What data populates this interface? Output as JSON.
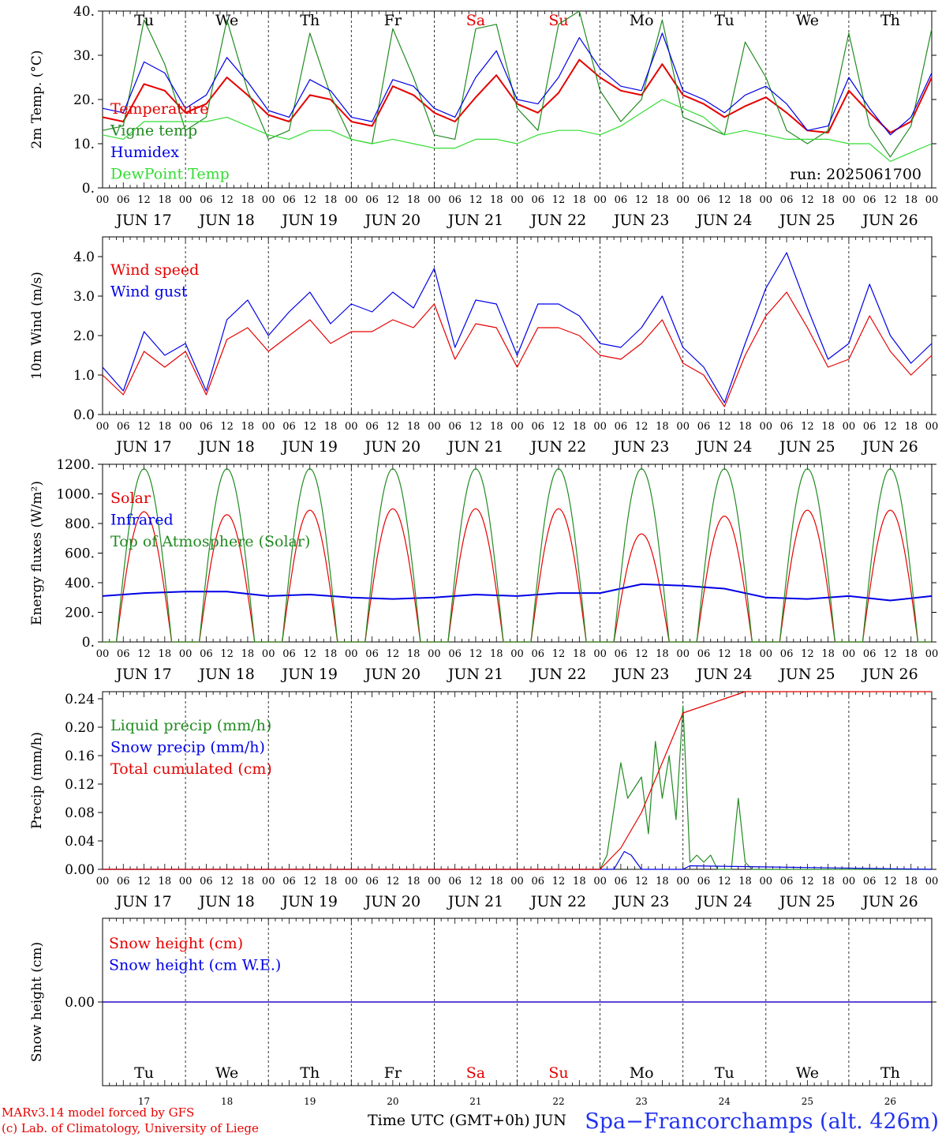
{
  "meter": {
    "footer_left_1": "MARv3.14 model forced by GFS",
    "footer_left_2": "(c) Lab. of Climatology, University of Liege",
    "footer_center": "Time UTC (GMT+0h) JUN",
    "footer_right": "Spa−Francorchamps (alt. 426m)",
    "run_label": "run: 2025061700"
  },
  "colors": {
    "red": "#e60000",
    "green": "#228b22",
    "blue": "#0000e6",
    "lightgreen": "#33dd33",
    "weekend": "#e60000",
    "text": "#000000",
    "footer_right": "#2233ee"
  },
  "chart_data": {
    "days": [
      "JUN 17",
      "JUN 18",
      "JUN 19",
      "JUN 20",
      "JUN 21",
      "JUN 22",
      "JUN 23",
      "JUN 24",
      "JUN 25",
      "JUN 26"
    ],
    "day_numbers": [
      "17",
      "18",
      "19",
      "20",
      "21",
      "22",
      "23",
      "24",
      "25",
      "26"
    ],
    "weekdays": [
      "Tu",
      "We",
      "Th",
      "Fr",
      "Sa",
      "Su",
      "Mo",
      "Tu",
      "We",
      "Th"
    ],
    "weekend_flags": [
      false,
      false,
      false,
      false,
      true,
      true,
      false,
      false,
      false,
      false
    ],
    "hour_ticks": [
      "00",
      "06",
      "12",
      "18"
    ],
    "panels": [
      {
        "id": "temperature",
        "type": "line",
        "ylabel": "2m Temp. (°C)",
        "ylim": [
          0,
          40
        ],
        "yticks": [
          "0.",
          "10.",
          "20.",
          "30.",
          "40."
        ],
        "yticks_values": [
          0,
          10,
          20,
          30,
          40
        ],
        "series": [
          {
            "name": "Temperature",
            "color": "red",
            "x": [
              0,
              6,
              12,
              18,
              24,
              30,
              36,
              42,
              48,
              54,
              60,
              66,
              72,
              78,
              84,
              90,
              96,
              102,
              108,
              114,
              120,
              126,
              132,
              138,
              144,
              150,
              156,
              162,
              168,
              174,
              180,
              186,
              192,
              198,
              204,
              210,
              216,
              222,
              228,
              234,
              240
            ],
            "values": [
              16,
              15,
              23.5,
              22,
              17,
              19,
              25,
              21,
              16.5,
              15,
              21,
              20,
              15,
              14,
              23,
              21,
              17,
              15,
              20.5,
              25.5,
              19,
              17,
              21.5,
              29,
              25,
              22,
              21,
              28,
              21,
              19,
              16,
              18.5,
              20.5,
              17,
              13,
              12.5,
              22,
              17,
              12.5,
              15,
              25
            ]
          },
          {
            "name": "Vigne temp",
            "color": "green",
            "x": [
              0,
              6,
              12,
              18,
              24,
              30,
              36,
              42,
              48,
              54,
              60,
              66,
              72,
              78,
              84,
              90,
              96,
              102,
              108,
              114,
              120,
              126,
              132,
              138,
              144,
              150,
              156,
              162,
              168,
              174,
              180,
              186,
              192,
              198,
              204,
              210,
              216,
              222,
              228,
              234,
              240
            ],
            "values": [
              13,
              14,
              38,
              28,
              13,
              16,
              38,
              22,
              11,
              13,
              35,
              21,
              11,
              10,
              36,
              25,
              12,
              11,
              36,
              37,
              18,
              13,
              37,
              40,
              22,
              15,
              20,
              38,
              16,
              14,
              12,
              33,
              25,
              13,
              10,
              13,
              35,
              14,
              7,
              14,
              36
            ]
          },
          {
            "name": "Humidex",
            "color": "blue",
            "x": [
              0,
              6,
              12,
              18,
              24,
              30,
              36,
              42,
              48,
              54,
              60,
              66,
              72,
              78,
              84,
              90,
              96,
              102,
              108,
              114,
              120,
              126,
              132,
              138,
              144,
              150,
              156,
              162,
              168,
              174,
              180,
              186,
              192,
              198,
              204,
              210,
              216,
              222,
              228,
              234,
              240
            ],
            "values": [
              18,
              17,
              28.5,
              26,
              18,
              21,
              29.5,
              24,
              17.5,
              16,
              24.5,
              22,
              16,
              15,
              24.5,
              23,
              18,
              16,
              25,
              31,
              20,
              19,
              25,
              34,
              27,
              23,
              22,
              35,
              22,
              20,
              17,
              21,
              23,
              19,
              13,
              14,
              25,
              18,
              12,
              16,
              26
            ]
          },
          {
            "name": "DewPoint Temp",
            "color": "lightgreen",
            "x": [
              0,
              6,
              12,
              18,
              24,
              30,
              36,
              42,
              48,
              54,
              60,
              66,
              72,
              78,
              84,
              90,
              96,
              102,
              108,
              114,
              120,
              126,
              132,
              138,
              144,
              150,
              156,
              162,
              168,
              174,
              180,
              186,
              192,
              198,
              204,
              210,
              216,
              222,
              228,
              234,
              240
            ],
            "values": [
              12,
              11,
              15,
              15,
              15,
              15,
              16,
              14,
              12,
              11,
              13,
              13,
              11,
              10,
              11,
              10,
              9,
              9,
              11,
              11,
              10,
              12,
              13,
              13,
              12,
              14,
              17,
              20,
              18,
              16,
              12,
              13,
              12,
              11,
              11,
              11,
              10,
              10,
              6,
              8,
              10
            ]
          }
        ],
        "legend": [
          "Temperature",
          "Vigne temp",
          "Humidex",
          "DewPoint Temp"
        ]
      },
      {
        "id": "wind",
        "type": "line",
        "ylabel": "10m Wind (m/s)",
        "ylim": [
          0,
          4.5
        ],
        "yticks": [
          "0.0",
          "1.0",
          "2.0",
          "3.0",
          "4.0"
        ],
        "yticks_values": [
          0,
          1,
          2,
          3,
          4
        ],
        "series": [
          {
            "name": "Wind speed",
            "color": "red",
            "x": [
              0,
              6,
              12,
              18,
              24,
              30,
              36,
              42,
              48,
              54,
              60,
              66,
              72,
              78,
              84,
              90,
              96,
              102,
              108,
              114,
              120,
              126,
              132,
              138,
              144,
              150,
              156,
              162,
              168,
              174,
              180,
              186,
              192,
              198,
              204,
              210,
              216,
              222,
              228,
              234,
              240
            ],
            "values": [
              1.0,
              0.5,
              1.6,
              1.2,
              1.6,
              0.5,
              1.9,
              2.2,
              1.6,
              2.0,
              2.4,
              1.8,
              2.1,
              2.1,
              2.4,
              2.2,
              2.8,
              1.4,
              2.3,
              2.2,
              1.2,
              2.2,
              2.2,
              2.0,
              1.5,
              1.4,
              1.8,
              2.4,
              1.3,
              1.0,
              0.2,
              1.5,
              2.5,
              3.1,
              2.2,
              1.2,
              1.4,
              2.5,
              1.6,
              1.0,
              1.5
            ]
          },
          {
            "name": "Wind gust",
            "color": "blue",
            "x": [
              0,
              6,
              12,
              18,
              24,
              30,
              36,
              42,
              48,
              54,
              60,
              66,
              72,
              78,
              84,
              90,
              96,
              102,
              108,
              114,
              120,
              126,
              132,
              138,
              144,
              150,
              156,
              162,
              168,
              174,
              180,
              186,
              192,
              198,
              204,
              210,
              216,
              222,
              228,
              234,
              240
            ],
            "values": [
              1.2,
              0.6,
              2.1,
              1.5,
              1.8,
              0.6,
              2.4,
              2.9,
              2.0,
              2.6,
              3.1,
              2.3,
              2.8,
              2.6,
              3.1,
              2.7,
              3.7,
              1.7,
              2.9,
              2.8,
              1.5,
              2.8,
              2.8,
              2.5,
              1.8,
              1.7,
              2.2,
              3.0,
              1.7,
              1.2,
              0.3,
              1.8,
              3.2,
              4.1,
              2.7,
              1.4,
              1.8,
              3.3,
              2.0,
              1.3,
              1.8
            ]
          }
        ],
        "legend": [
          "Wind speed",
          "Wind gust"
        ]
      },
      {
        "id": "energy",
        "type": "line",
        "ylabel": "Energy fluxes (W/m²)",
        "ylim": [
          0,
          1200
        ],
        "yticks": [
          "0.",
          "200.",
          "400.",
          "600.",
          "800.",
          "1000.",
          "1200."
        ],
        "yticks_values": [
          0,
          200,
          400,
          600,
          800,
          1000,
          1200
        ],
        "series": [
          {
            "name": "Solar",
            "color": "red",
            "daily_peak": [
              880,
              860,
              890,
              900,
              900,
              900,
              730,
              850,
              890,
              890
            ]
          },
          {
            "name": "Infrared",
            "color": "blue",
            "x": [
              0,
              12,
              24,
              36,
              48,
              60,
              72,
              84,
              96,
              108,
              120,
              132,
              144,
              156,
              168,
              180,
              192,
              204,
              216,
              228,
              240
            ],
            "values": [
              310,
              330,
              340,
              340,
              310,
              320,
              300,
              290,
              300,
              320,
              310,
              330,
              330,
              390,
              380,
              360,
              300,
              290,
              310,
              280,
              310
            ]
          },
          {
            "name": "Top of Atmosphere (Solar)",
            "color": "green",
            "daily_peak": [
              1170,
              1170,
              1170,
              1170,
              1170,
              1170,
              1170,
              1170,
              1170,
              1170
            ]
          }
        ],
        "legend": [
          "Solar",
          "Infrared",
          "Top of Atmosphere (Solar)"
        ]
      },
      {
        "id": "precip",
        "type": "line",
        "ylabel": "Precip (mm/h)",
        "ylim": [
          0,
          0.25
        ],
        "yticks": [
          "0.00",
          "0.04",
          "0.08",
          "0.12",
          "0.16",
          "0.20",
          "0.24"
        ],
        "yticks_values": [
          0,
          0.04,
          0.08,
          0.12,
          0.16,
          0.2,
          0.24
        ],
        "series": [
          {
            "name": "Liquid precip (mm/h)",
            "color": "green",
            "x": [
              0,
              144,
              146,
              150,
              152,
              156,
              158,
              160,
              162,
              164,
              166,
              168,
              170,
              172,
              174,
              176,
              178,
              180,
              182,
              184,
              186,
              188,
              190,
              240
            ],
            "values": [
              0,
              0,
              0.02,
              0.15,
              0.1,
              0.13,
              0.05,
              0.18,
              0.1,
              0.16,
              0.07,
              0.23,
              0.01,
              0.02,
              0.01,
              0.02,
              0,
              0,
              0,
              0.1,
              0.01,
              0,
              0,
              0
            ]
          },
          {
            "name": "Snow precip (mm/h)",
            "color": "blue",
            "x": [
              0,
              148,
              151,
              153,
              156,
              168,
              170,
              240
            ],
            "values": [
              0,
              0,
              0.025,
              0.02,
              0,
              0,
              0.005,
              0
            ]
          },
          {
            "name": "Total cumulated (cm)",
            "color": "red",
            "x": [
              0,
              144,
              150,
              156,
              162,
              168,
              174,
              180,
              186,
              192,
              240
            ],
            "values": [
              0,
              0,
              0.03,
              0.08,
              0.15,
              0.22,
              0.23,
              0.24,
              0.25,
              0.25,
              0.25
            ]
          }
        ],
        "legend": [
          "Liquid precip (mm/h)",
          "Snow precip (mm/h)",
          "Total cumulated (cm)"
        ]
      },
      {
        "id": "snow",
        "type": "line",
        "ylabel": "Snow height (cm)",
        "ylim": [
          -1,
          1
        ],
        "yticks": [
          "0.00"
        ],
        "yticks_values": [
          0
        ],
        "series": [
          {
            "name": "Snow height (cm)",
            "color": "red",
            "x": [
              0,
              240
            ],
            "values": [
              0,
              0
            ]
          },
          {
            "name": "Snow height (cm W.E.)",
            "color": "blue",
            "x": [
              0,
              240
            ],
            "values": [
              0,
              0
            ]
          }
        ],
        "legend": [
          "Snow height (cm)",
          "Snow height (cm W.E.)"
        ]
      }
    ]
  }
}
